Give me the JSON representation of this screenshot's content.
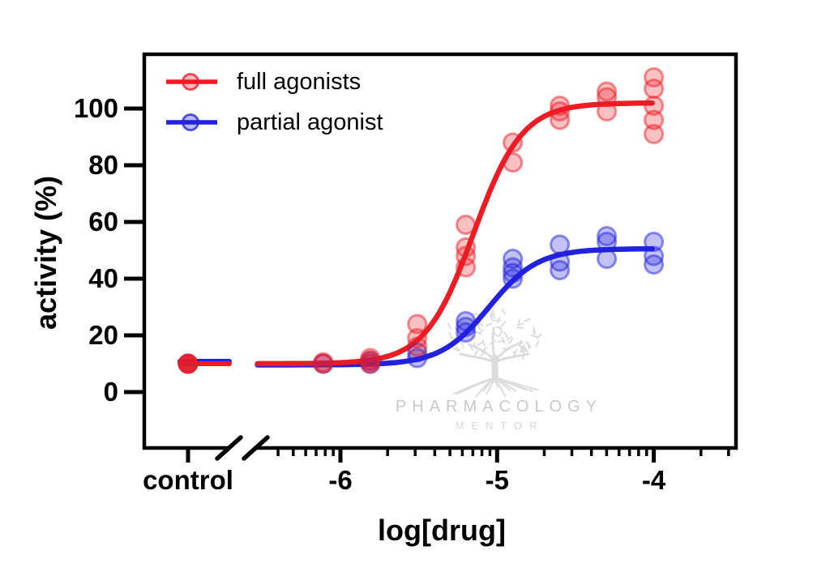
{
  "legend": {
    "items": [
      {
        "label": "full agonists",
        "color": "#ec1b24"
      },
      {
        "label": "partial agonist",
        "color": "#2121de"
      }
    ]
  },
  "watermark": {
    "line1": "PHARMACOLOGY",
    "line2": "MENTOR"
  },
  "chart_data": {
    "type": "scatter",
    "title": "",
    "xlabel": "log[drug]",
    "ylabel": "activity (%)",
    "x_axis": {
      "scale": "log10",
      "control_label": "control",
      "major_ticks": [
        -6,
        -5,
        -4
      ],
      "minor_ticks": "log-spaced (2-9 within each decade)",
      "axis_break": "double slash between control and log region"
    },
    "y_axis": {
      "ticks": [
        0,
        20,
        40,
        60,
        80,
        100
      ],
      "ylim": [
        -19,
        119
      ],
      "grid": false
    },
    "legend_position": "top-left inside plot",
    "series": [
      {
        "name": "full agonists",
        "color": "#ec1b24",
        "fit_curve": {
          "model": "sigmoidal dose-response",
          "bottom": 10,
          "top": 102,
          "logEC50": -5.15,
          "hill_slope": 2.8
        },
        "control_replicates": [
          10,
          10,
          10
        ],
        "points": [
          {
            "log_drug": -6.11,
            "activity": [
              10.5,
              10
            ]
          },
          {
            "log_drug": -5.81,
            "activity": [
              12,
              11,
              10
            ]
          },
          {
            "log_drug": -5.51,
            "activity": [
              24,
              19,
              16
            ]
          },
          {
            "log_drug": -5.2,
            "activity": [
              59,
              51,
              48,
              44
            ]
          },
          {
            "log_drug": -4.9,
            "activity": [
              88,
              81
            ]
          },
          {
            "log_drug": -4.6,
            "activity": [
              101,
              99,
              96
            ]
          },
          {
            "log_drug": -4.3,
            "activity": [
              106,
              104,
              99
            ]
          },
          {
            "log_drug": -4.0,
            "activity": [
              111,
              107,
              101,
              96,
              91
            ]
          }
        ]
      },
      {
        "name": "partial agonist",
        "color": "#2121de",
        "fit_curve": {
          "model": "sigmoidal dose-response",
          "bottom": 10,
          "top": 51,
          "logEC50": -5.05,
          "hill_slope": 2.8
        },
        "control_replicates": [
          10
        ],
        "points": [
          {
            "log_drug": -6.11,
            "activity": [
              10
            ]
          },
          {
            "log_drug": -5.81,
            "activity": [
              11,
              10
            ]
          },
          {
            "log_drug": -5.51,
            "activity": [
              14,
              12
            ]
          },
          {
            "log_drug": -5.2,
            "activity": [
              25,
              23,
              21
            ]
          },
          {
            "log_drug": -4.9,
            "activity": [
              47,
              44,
              42,
              40
            ]
          },
          {
            "log_drug": -4.6,
            "activity": [
              52,
              46,
              43
            ]
          },
          {
            "log_drug": -4.3,
            "activity": [
              55,
              53,
              47
            ]
          },
          {
            "log_drug": -4.0,
            "activity": [
              53,
              48,
              45
            ]
          }
        ]
      }
    ]
  }
}
